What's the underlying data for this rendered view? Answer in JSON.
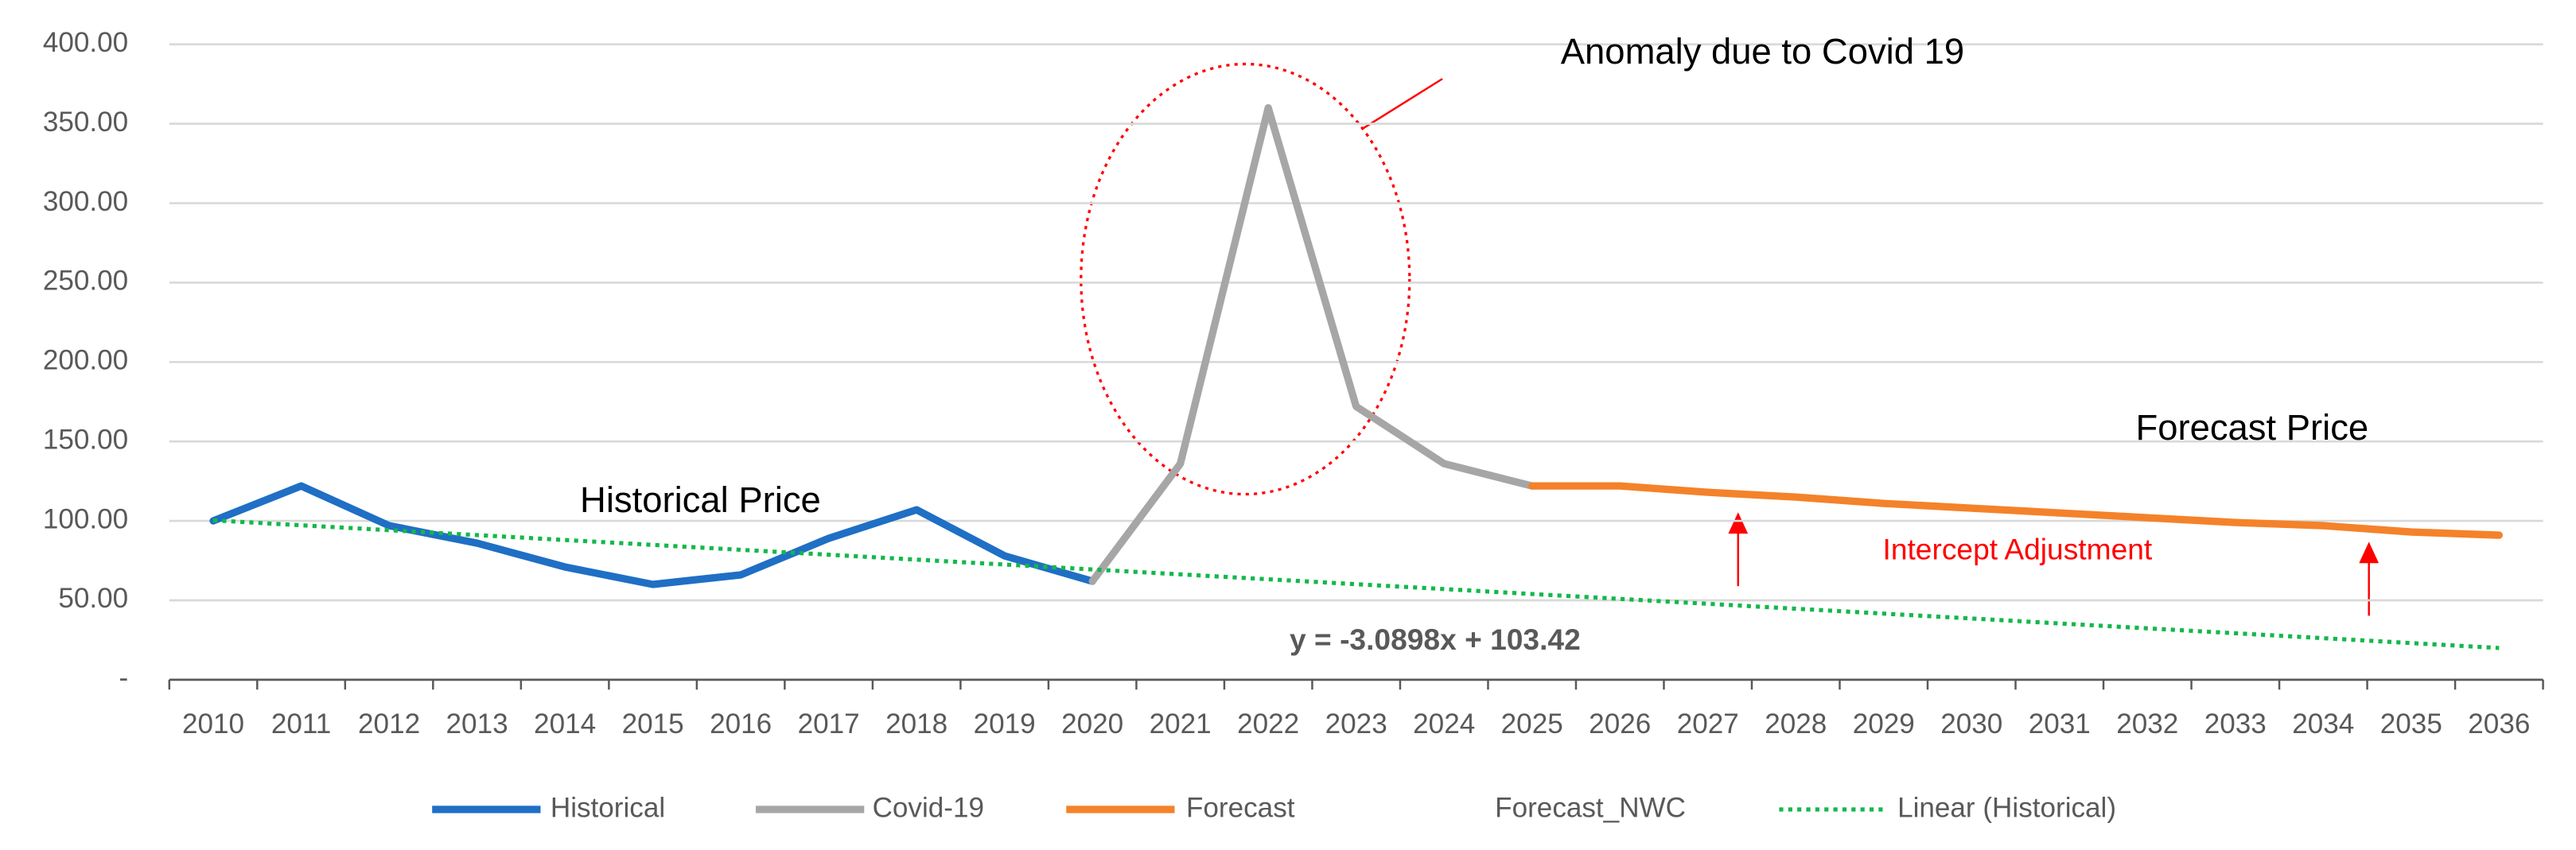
{
  "chart_data": {
    "type": "line",
    "categories": [
      "2010",
      "2011",
      "2012",
      "2013",
      "2014",
      "2015",
      "2016",
      "2017",
      "2018",
      "2019",
      "2020",
      "2021",
      "2022",
      "2023",
      "2024",
      "2025",
      "2026",
      "2027",
      "2028",
      "2029",
      "2030",
      "2031",
      "2032",
      "2033",
      "2034",
      "2035",
      "2036"
    ],
    "series": [
      {
        "name": "Historical",
        "color": "#1f6fc5",
        "style": "solid",
        "values": [
          100,
          122,
          97,
          86,
          71,
          60,
          66,
          89,
          107,
          78,
          62,
          null,
          null,
          null,
          null,
          null,
          null,
          null,
          null,
          null,
          null,
          null,
          null,
          null,
          null,
          null,
          null
        ]
      },
      {
        "name": "Covid-19",
        "color": "#a6a6a6",
        "style": "solid",
        "values": [
          null,
          null,
          null,
          null,
          null,
          null,
          null,
          null,
          null,
          null,
          62,
          136,
          360,
          172,
          136,
          122,
          null,
          null,
          null,
          null,
          null,
          null,
          null,
          null,
          null,
          null,
          null
        ]
      },
      {
        "name": "Forecast",
        "color": "#f4822a",
        "style": "solid",
        "values": [
          null,
          null,
          null,
          null,
          null,
          null,
          null,
          null,
          null,
          null,
          null,
          null,
          null,
          null,
          null,
          122,
          122,
          118,
          115,
          111,
          108,
          105,
          102,
          99,
          97,
          93,
          91
        ]
      },
      {
        "name": "Forecast_NWC",
        "color": "#ffffff",
        "style": "solid",
        "values": [
          null,
          null,
          null,
          null,
          null,
          null,
          null,
          null,
          null,
          null,
          null,
          null,
          null,
          null,
          null,
          null,
          null,
          null,
          null,
          null,
          null,
          null,
          null,
          null,
          null,
          null,
          null
        ]
      },
      {
        "name": "Linear (Historical)",
        "color": "#13b84a",
        "style": "dotted",
        "values": [
          100.33,
          97.24,
          94.15,
          91.06,
          87.97,
          84.88,
          81.79,
          78.71,
          75.61,
          72.52,
          69.43,
          66.34,
          63.25,
          60.16,
          57.07,
          53.98,
          50.89,
          47.8,
          44.71,
          41.62,
          38.54,
          35.44,
          32.35,
          29.26,
          26.17,
          23.08,
          20
        ]
      }
    ],
    "ylim": [
      0,
      400
    ],
    "yticks": [
      {
        "value": 0,
        "label": "-"
      },
      {
        "value": 50,
        "label": "50.00"
      },
      {
        "value": 100,
        "label": "100.00"
      },
      {
        "value": 150,
        "label": "150.00"
      },
      {
        "value": 200,
        "label": "200.00"
      },
      {
        "value": 250,
        "label": "250.00"
      },
      {
        "value": 300,
        "label": "300.00"
      },
      {
        "value": 350,
        "label": "350.00"
      },
      {
        "value": 400,
        "label": "400.00"
      }
    ],
    "grid": true,
    "legend": "bottom",
    "annotations": [
      "Anomaly due to Covid 19",
      "Forecast Price",
      "Historical Price",
      "Intercept Adjustment",
      "y = -3.0898x + 103.42"
    ]
  }
}
